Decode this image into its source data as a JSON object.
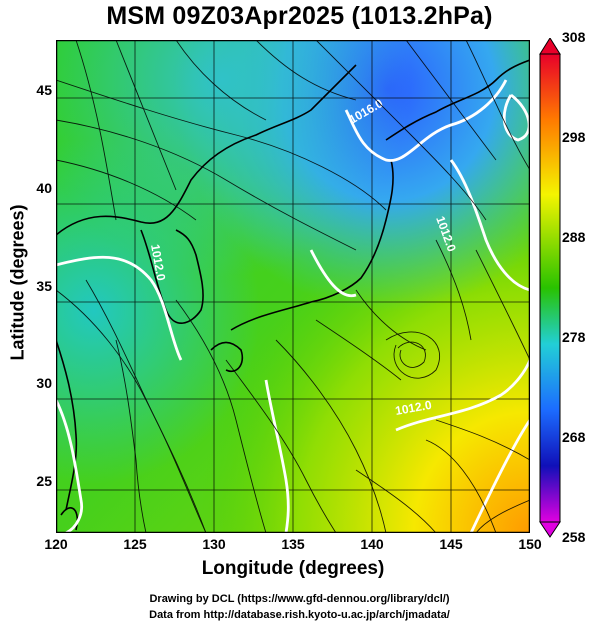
{
  "title": "MSM 09Z03Apr2025 (1013.2hPa)",
  "xlabel": "Longitude (degrees)",
  "ylabel": "Latitude  (degrees)",
  "colorbar": {
    "ticks": [
      "308",
      "298",
      "288",
      "278",
      "268",
      "258"
    ],
    "colors": [
      "#e8002a",
      "#ff7a00",
      "#f4f400",
      "#29c200",
      "#22cfd6",
      "#1c6cff",
      "#1010b8",
      "#e000e0"
    ]
  },
  "contour_labels": [
    "1016.0",
    "1012.0",
    "1012.0",
    "1012.0"
  ],
  "credits": {
    "line1": "Drawing by DCL (https://www.gfd-dennou.org/library/dcl/)",
    "line2": "Data from http://database.rish.kyoto-u.ac.jp/arch/jmadata/"
  },
  "chart_data": {
    "type": "heatmap",
    "title": "MSM 09Z03Apr2025 (1013.2hPa)",
    "xlabel": "Longitude (degrees)",
    "ylabel": "Latitude  (degrees)",
    "xlim": [
      120,
      150
    ],
    "ylim": [
      22.4,
      47.6
    ],
    "xticks": [
      120,
      125,
      130,
      135,
      140,
      145,
      150
    ],
    "yticks": [
      25,
      30,
      35,
      40,
      45
    ],
    "colorbar_range": [
      258,
      308
    ],
    "colorbar_ticks": [
      308,
      298,
      288,
      278,
      268,
      258
    ],
    "overlays": [
      "streamlines",
      "pressure contours",
      "coastlines",
      "grid"
    ],
    "grid": true
  }
}
